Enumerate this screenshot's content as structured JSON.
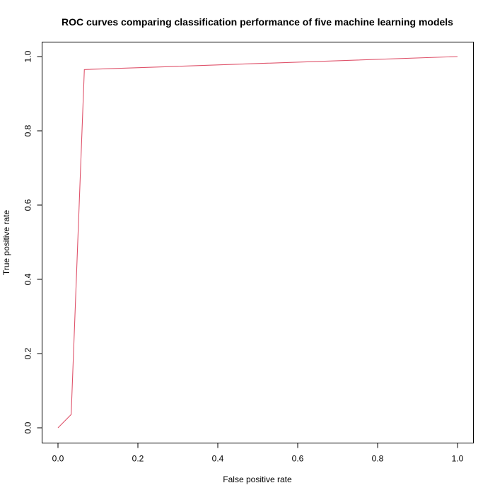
{
  "chart_data": {
    "type": "line",
    "title": "ROC curves comparing classification performance of five machine learning models",
    "xlabel": "False positive rate",
    "ylabel": "True positive rate",
    "xlim": [
      0,
      1
    ],
    "ylim": [
      0,
      1
    ],
    "x_ticks": [
      "0.0",
      "0.2",
      "0.4",
      "0.6",
      "0.8",
      "1.0"
    ],
    "y_ticks": [
      "0.0",
      "0.2",
      "0.4",
      "0.6",
      "0.8",
      "1.0"
    ],
    "grid": false,
    "legend": "none",
    "series": [
      {
        "color": "#DF536B",
        "x": [
          0.0,
          0.033,
          0.066,
          1.0
        ],
        "y": [
          0.0,
          0.036,
          0.965,
          1.0
        ]
      }
    ]
  }
}
